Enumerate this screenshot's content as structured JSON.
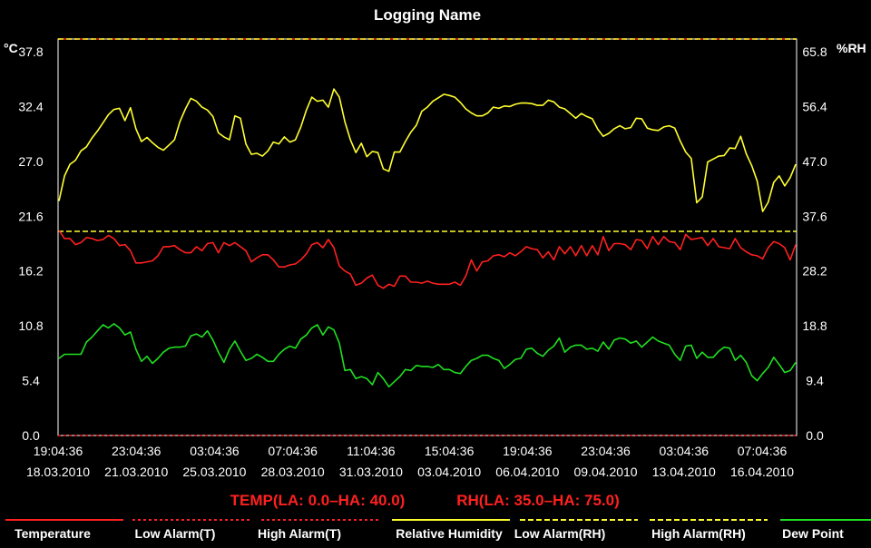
{
  "chart_data": {
    "type": "line",
    "title": "Logging Name",
    "left_unit": "°C",
    "right_unit": "%RH",
    "left_ticks": [
      "37.8",
      "32.4",
      "27.0",
      "21.6",
      "16.2",
      "10.8",
      "5.4",
      "0.0"
    ],
    "right_ticks": [
      "65.8",
      "56.4",
      "47.0",
      "37.6",
      "28.2",
      "18.8",
      "9.4",
      "0.0"
    ],
    "left_range": [
      0,
      37.8
    ],
    "right_range": [
      0,
      65.8
    ],
    "x_tick_labels": [
      {
        "time": "19:04:36",
        "date": "18.03.2010"
      },
      {
        "time": "23:04:36",
        "date": "21.03.2010"
      },
      {
        "time": "03:04:36",
        "date": "25.03.2010"
      },
      {
        "time": "07:04:36",
        "date": "28.03.2010"
      },
      {
        "time": "11:04:36",
        "date": "31.03.2010"
      },
      {
        "time": "15:04:36",
        "date": "03.04.2010"
      },
      {
        "time": "19:04:36",
        "date": "06.04.2010"
      },
      {
        "time": "23:04:36",
        "date": "09.04.2010"
      },
      {
        "time": "03:04:36",
        "date": "13.04.2010"
      },
      {
        "time": "07:04:36",
        "date": "16.04.2010"
      }
    ],
    "limits_temp": "TEMP(LA: 0.0–HA: 40.0)",
    "limits_rh": "RH(LA: 35.0–HA: 75.0)",
    "alarm_lines": [
      {
        "name": "Low Alarm(T)",
        "axis": "left",
        "value": 0.0,
        "color": "#ff2020",
        "dash": "3,3"
      },
      {
        "name": "High Alarm(T)",
        "axis": "left",
        "value": 40.0,
        "color": "#ff2020",
        "dash": "3,3"
      },
      {
        "name": "Low Alarm(RH)",
        "axis": "right",
        "value": 35.0,
        "color": "#ffff30",
        "dash": "6,3"
      },
      {
        "name": "High Alarm(RH)",
        "axis": "right",
        "value": 75.0,
        "color": "#ffff30",
        "dash": "6,3"
      }
    ],
    "series": [
      {
        "name": "Relative Humidity",
        "axis": "right",
        "color": "#ffff30",
        "values": [
          40.2,
          44.5,
          46.5,
          47.2,
          48.8,
          49.5,
          51.0,
          52.2,
          53.6,
          55.0,
          55.9,
          56.1,
          54.0,
          56.2,
          52.6,
          50.4,
          51.1,
          50.2,
          49.4,
          48.9,
          49.8,
          50.7,
          53.8,
          56.0,
          57.8,
          57.3,
          56.3,
          55.8,
          54.7,
          51.9,
          51.2,
          50.7,
          54.8,
          54.4,
          50.0,
          48.2,
          48.4,
          47.9,
          48.8,
          50.3,
          50.0,
          51.2,
          50.3,
          50.7,
          52.9,
          55.8,
          58.0,
          57.3,
          57.5,
          56.3,
          59.4,
          58.0,
          53.8,
          50.7,
          48.5,
          50.1,
          47.8,
          48.7,
          48.5,
          45.7,
          45.3,
          48.6,
          48.6,
          50.4,
          52.0,
          53.2,
          55.6,
          56.3,
          57.3,
          57.9,
          58.5,
          58.3,
          58.0,
          57.1,
          56.0,
          55.3,
          54.8,
          54.8,
          55.3,
          56.3,
          56.1,
          56.5,
          56.4,
          56.8,
          57.0,
          57.0,
          56.9,
          56.6,
          56.6,
          57.5,
          57.2,
          56.3,
          56.0,
          55.2,
          54.4,
          55.2,
          54.7,
          54.3,
          52.5,
          51.3,
          51.8,
          52.6,
          53.1,
          52.6,
          52.8,
          54.4,
          54.3,
          52.7,
          52.4,
          52.3,
          52.9,
          53.1,
          52.7,
          50.5,
          48.6,
          47.5,
          39.9,
          40.9,
          46.9,
          47.4,
          47.9,
          48.0,
          49.3,
          49.2,
          51.3,
          48.3,
          46.3,
          43.6,
          38.4,
          40.0,
          43.4,
          44.5,
          42.8,
          44.2,
          46.5
        ]
      },
      {
        "name": "Temperature",
        "axis": "left",
        "color": "#ff2020",
        "values": [
          20.2,
          19.4,
          19.4,
          18.8,
          19.0,
          19.5,
          19.4,
          19.2,
          19.3,
          19.7,
          19.4,
          18.7,
          18.8,
          18.2,
          17.0,
          17.0,
          17.1,
          17.2,
          17.7,
          18.6,
          18.6,
          18.7,
          18.3,
          18.0,
          18.0,
          18.6,
          18.2,
          18.9,
          19.0,
          18.0,
          19.0,
          18.7,
          19.0,
          18.6,
          18.2,
          17.1,
          17.5,
          17.8,
          17.8,
          17.3,
          16.6,
          16.6,
          16.8,
          16.9,
          17.3,
          17.9,
          18.8,
          19.0,
          18.5,
          19.3,
          18.5,
          16.7,
          16.2,
          15.9,
          14.8,
          15.0,
          15.5,
          15.8,
          14.8,
          14.5,
          14.9,
          14.7,
          15.7,
          15.7,
          15.1,
          15.1,
          15.0,
          15.2,
          15.0,
          14.9,
          14.9,
          14.9,
          15.1,
          14.8,
          15.7,
          17.3,
          16.2,
          17.1,
          17.2,
          17.7,
          17.8,
          17.6,
          18.0,
          17.7,
          18.1,
          18.6,
          18.4,
          18.3,
          17.5,
          18.1,
          17.3,
          18.6,
          17.9,
          18.6,
          17.7,
          18.7,
          17.7,
          18.7,
          17.8,
          19.6,
          18.2,
          18.9,
          18.9,
          18.8,
          18.3,
          19.3,
          19.2,
          18.4,
          19.6,
          18.8,
          19.6,
          19.1,
          19.0,
          18.3,
          19.8,
          19.3,
          19.4,
          19.5,
          18.7,
          19.4,
          18.6,
          18.5,
          18.4,
          19.4,
          18.5,
          18.1,
          17.8,
          17.7,
          17.4,
          18.5,
          19.1,
          18.9,
          18.5,
          17.3,
          18.8
        ]
      },
      {
        "name": "Dew Point",
        "axis": "left",
        "color": "#20e020",
        "values": [
          7.6,
          8.0,
          8.0,
          8.0,
          8.0,
          9.2,
          9.7,
          10.3,
          10.9,
          10.6,
          11.0,
          10.6,
          9.9,
          10.2,
          8.5,
          7.3,
          7.8,
          7.1,
          7.6,
          8.2,
          8.6,
          8.7,
          8.7,
          8.8,
          9.8,
          10.0,
          9.7,
          10.3,
          9.4,
          8.2,
          7.2,
          8.5,
          9.3,
          8.3,
          7.4,
          7.6,
          8.0,
          7.7,
          7.3,
          7.3,
          8.0,
          8.5,
          8.8,
          8.6,
          9.5,
          9.9,
          10.6,
          10.9,
          9.9,
          10.7,
          10.4,
          9.1,
          6.4,
          6.5,
          5.6,
          5.8,
          5.6,
          5.0,
          6.2,
          5.6,
          4.8,
          5.3,
          5.8,
          6.5,
          6.4,
          6.9,
          6.8,
          6.8,
          6.7,
          7.0,
          6.5,
          6.5,
          6.2,
          6.1,
          6.8,
          7.4,
          7.6,
          7.9,
          7.9,
          7.6,
          7.4,
          6.6,
          7.0,
          7.5,
          7.6,
          8.5,
          8.6,
          8.1,
          7.8,
          8.4,
          8.8,
          9.6,
          8.2,
          8.7,
          8.9,
          8.9,
          8.5,
          8.6,
          8.3,
          9.2,
          8.5,
          9.4,
          9.6,
          9.5,
          9.1,
          9.3,
          8.7,
          9.2,
          9.7,
          9.3,
          9.1,
          8.9,
          8.0,
          7.4,
          8.8,
          8.9,
          7.6,
          8.2,
          7.7,
          7.7,
          8.3,
          8.7,
          8.6,
          7.4,
          7.9,
          7.2,
          5.9,
          5.4,
          6.1,
          6.7,
          7.7,
          7.0,
          6.2,
          6.4,
          7.2
        ]
      }
    ],
    "legend": [
      {
        "label": "Temperature",
        "color": "#ff2020",
        "dash": ""
      },
      {
        "label": "Low Alarm(T)",
        "color": "#ff2020",
        "dash": "3,3"
      },
      {
        "label": "High Alarm(T)",
        "color": "#ff2020",
        "dash": "3,3"
      },
      {
        "label": "Relative Humidity",
        "color": "#ffff30",
        "dash": ""
      },
      {
        "label": "Low Alarm(RH)",
        "color": "#ffff30",
        "dash": "6,3"
      },
      {
        "label": "High Alarm(RH)",
        "color": "#ffff30",
        "dash": "6,3"
      },
      {
        "label": "Dew Point",
        "color": "#20e020",
        "dash": ""
      }
    ],
    "colors": {
      "background": "#000000",
      "frame": "#ffffff",
      "limits_text": "#ff2020"
    }
  }
}
